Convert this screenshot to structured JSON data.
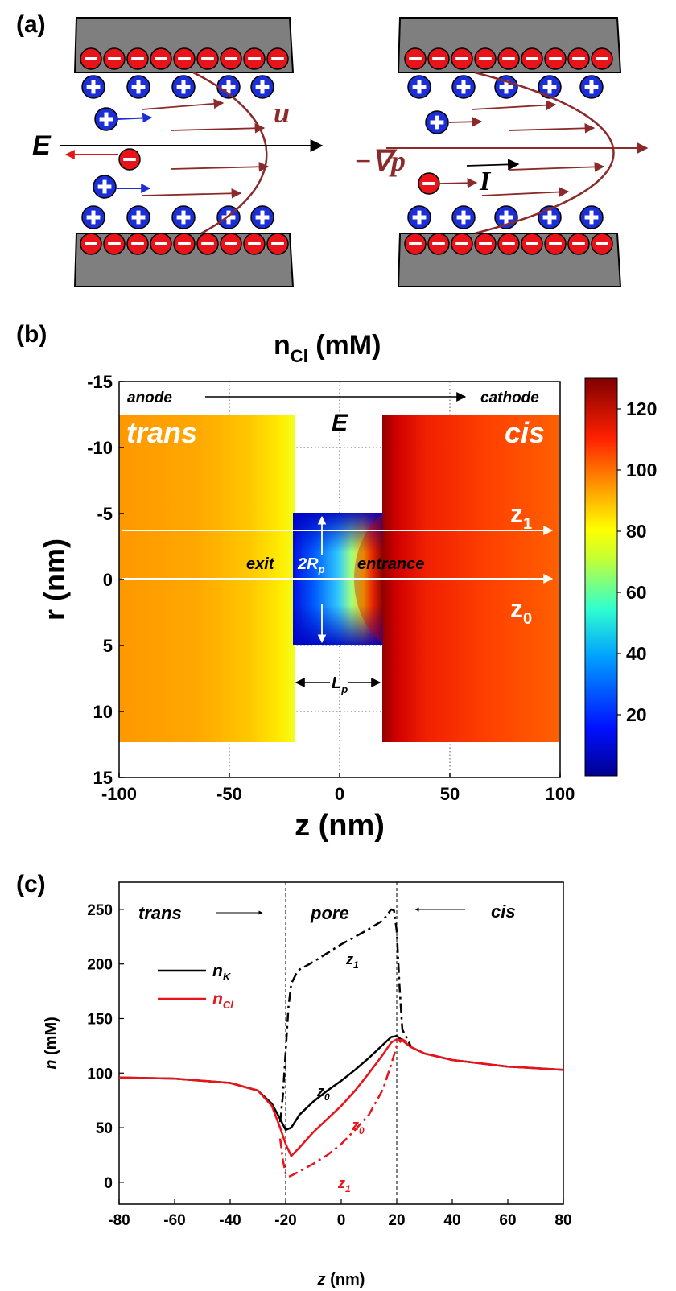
{
  "panel_a": {
    "label": "(a)",
    "left": {
      "u": "u",
      "E": "E"
    },
    "right": {
      "grad_p": "−∇p",
      "I": "I"
    }
  },
  "panel_b": {
    "label": "(b)",
    "title_main": "n",
    "title_sub": "Cl",
    "title_unit": " (mM)",
    "anode": "anode",
    "cathode": "cathode",
    "E": "E",
    "trans": "trans",
    "cis": "cis",
    "exit": "exit",
    "rp_main": "2R",
    "rp_sub": "p",
    "entrance": "entrance",
    "z1_main": "z",
    "z1_sub": "1",
    "z0_main": "z",
    "z0_sub": "0",
    "lp_main": "L",
    "lp_sub": "p",
    "xlabel": "z (nm)",
    "ylabel": "r (nm)",
    "xticks": [
      "-100",
      "-50",
      "0",
      "50",
      "100"
    ],
    "yticks": [
      "-15",
      "-10",
      "-5",
      "0",
      "5",
      "10",
      "15"
    ],
    "colorbar_ticks": [
      "120",
      "100",
      "80",
      "60",
      "40",
      "20"
    ]
  },
  "panel_c": {
    "label": "(c)",
    "trans": "trans",
    "pore": "pore",
    "cis": "cis",
    "legend_nk_main": "n",
    "legend_nk_sub": "K",
    "legend_ncl_main": "n",
    "legend_ncl_sub": "Cl",
    "curve_z1_top": {
      "main": "z",
      "sub": "1"
    },
    "curve_z0_black": {
      "main": "z",
      "sub": "0"
    },
    "curve_z0_red": {
      "main": "z",
      "sub": "0"
    },
    "curve_z1_red": {
      "main": "z",
      "sub": "1"
    },
    "ylabel_italic": "n",
    "ylabel_unit": " (mM)",
    "xlabel_italic": "z",
    "xlabel_unit": " (nm)",
    "xticks": [
      "-80",
      "-60",
      "-40",
      "-20",
      "0",
      "20",
      "40",
      "60",
      "80"
    ],
    "yticks": [
      "0",
      "50",
      "100",
      "150",
      "200",
      "250"
    ]
  },
  "chart_data": [
    {
      "type": "heatmap",
      "title": "nCl (mM)",
      "xlabel": "z (nm)",
      "ylabel": "r (nm)",
      "xlim": [
        -100,
        100
      ],
      "ylim": [
        15,
        -15
      ],
      "colorbar_range": [
        0,
        130
      ],
      "colorbar_ticks": [
        20,
        40,
        60,
        80,
        100,
        120
      ],
      "regions": [
        {
          "name": "trans",
          "z_range": [
            -100,
            -20
          ],
          "r_range": [
            -12.5,
            12.5
          ],
          "value_approx": 90
        },
        {
          "name": "pore",
          "z_range": [
            -20,
            20
          ],
          "r_range": [
            -5,
            5
          ],
          "value_approx": 30
        },
        {
          "name": "cis",
          "z_range": [
            20,
            100
          ],
          "r_range": [
            -12.5,
            12.5
          ],
          "value_approx": 110
        }
      ],
      "grid": true
    },
    {
      "type": "line",
      "xlabel": "z (nm)",
      "ylabel": "n (mM)",
      "xlim": [
        -80,
        80
      ],
      "ylim": [
        -20,
        275
      ],
      "legend_position": "left",
      "series": [
        {
          "name": "nK z0",
          "color": "#000000",
          "dash": "solid",
          "x": [
            -80,
            -60,
            -40,
            -30,
            -25,
            -22,
            -20,
            -18,
            -15,
            -10,
            -5,
            0,
            5,
            10,
            15,
            18,
            20,
            22,
            25,
            30,
            40,
            60,
            80
          ],
          "y": [
            96,
            95,
            91,
            84,
            72,
            58,
            48,
            50,
            62,
            74,
            84,
            93,
            103,
            114,
            126,
            133,
            134,
            130,
            124,
            118,
            112,
            106,
            103
          ]
        },
        {
          "name": "nCl z0",
          "color": "#e8141a",
          "dash": "solid",
          "x": [
            -80,
            -60,
            -40,
            -30,
            -25,
            -22,
            -20,
            -18,
            -15,
            -10,
            -5,
            0,
            5,
            10,
            15,
            18,
            20,
            22,
            25,
            30,
            40,
            60,
            80
          ],
          "y": [
            96,
            95,
            91,
            84,
            70,
            50,
            35,
            24,
            32,
            46,
            58,
            70,
            84,
            100,
            117,
            128,
            131,
            130,
            124,
            118,
            112,
            106,
            103
          ]
        },
        {
          "name": "nK z1",
          "color": "#000000",
          "dash": "dashdot",
          "x": [
            -22,
            -21,
            -20,
            -19,
            -18,
            -16,
            -15,
            -10,
            -5,
            0,
            5,
            10,
            15,
            18,
            19,
            20,
            21,
            22,
            25
          ],
          "y": [
            55,
            80,
            120,
            160,
            182,
            192,
            195,
            202,
            210,
            218,
            225,
            232,
            240,
            250,
            249,
            230,
            180,
            140,
            125
          ]
        },
        {
          "name": "nCl z1",
          "color": "#e8141a",
          "dash": "dashdot",
          "x": [
            -22,
            -21,
            -20,
            -19,
            -18,
            -15,
            -10,
            -5,
            0,
            5,
            10,
            15,
            18,
            20,
            22,
            25
          ],
          "y": [
            40,
            20,
            8,
            5,
            6,
            10,
            17,
            25,
            35,
            48,
            62,
            85,
            108,
            125,
            131,
            126
          ]
        }
      ],
      "annotations": [
        "trans",
        "pore",
        "cis"
      ],
      "vertical_lines_x": [
        -20,
        20
      ]
    }
  ]
}
